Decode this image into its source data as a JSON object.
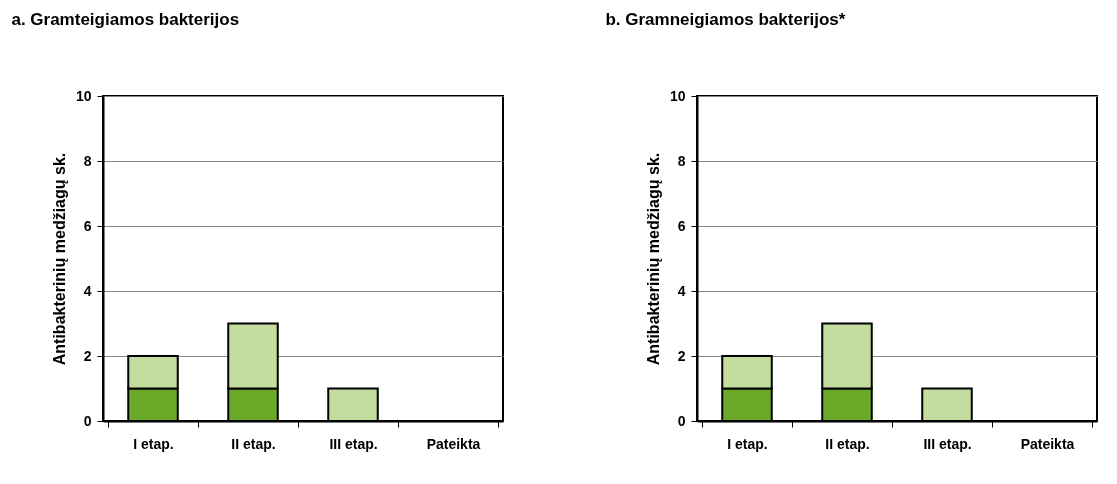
{
  "chart_data": [
    {
      "type": "bar",
      "title": "a. Gramteigiamos bakterijos",
      "ylabel": "Antibakterinių medžiagų sk.",
      "categories": [
        "I etap.",
        "II etap.",
        "III etap.",
        "Pateikta"
      ],
      "stacked": true,
      "ylim": [
        0,
        10
      ],
      "yticks": [
        0,
        2,
        4,
        6,
        8,
        10
      ],
      "grid": "y",
      "legend": false,
      "series": [
        {
          "color": "#6aaa28",
          "values": [
            1,
            1,
            0,
            0
          ]
        },
        {
          "color": "#c3dd9e",
          "values": [
            1,
            2,
            1,
            0
          ]
        }
      ]
    },
    {
      "type": "bar",
      "title": "b. Gramneigiamos bakterijos*",
      "ylabel": "Antibakterinių medžiagų sk.",
      "categories": [
        "I etap.",
        "II etap.",
        "III etap.",
        "Pateikta"
      ],
      "stacked": true,
      "ylim": [
        0,
        10
      ],
      "yticks": [
        0,
        2,
        4,
        6,
        8,
        10
      ],
      "grid": "y",
      "legend": false,
      "series": [
        {
          "color": "#6aaa28",
          "values": [
            1,
            1,
            0,
            0
          ]
        },
        {
          "color": "#c3dd9e",
          "values": [
            1,
            2,
            1,
            0
          ]
        }
      ]
    }
  ]
}
